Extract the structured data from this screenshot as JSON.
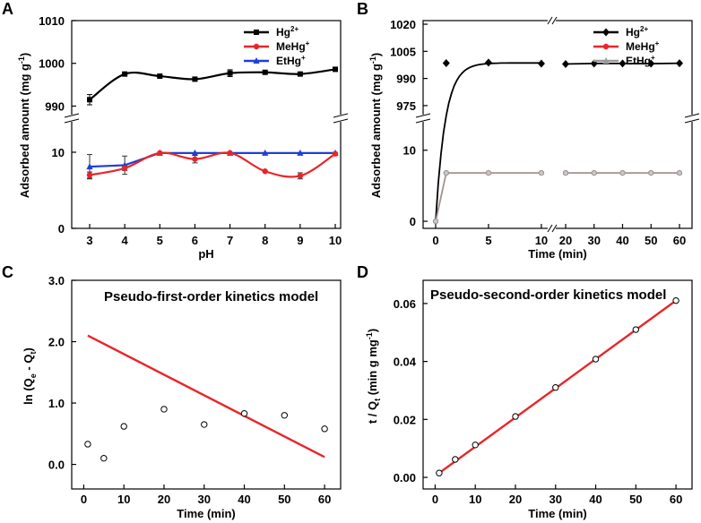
{
  "figure": {
    "panel_labels": [
      "A",
      "B",
      "C",
      "D"
    ]
  },
  "chart_data": [
    {
      "panel": "A",
      "type": "line",
      "xlabel": "pH",
      "ylabel": "Adsorbed amount (mg g-1)",
      "x": [
        3,
        4,
        5,
        6,
        7,
        8,
        9,
        10
      ],
      "xticks": [
        "3",
        "4",
        "5",
        "6",
        "7",
        "8",
        "9",
        "10"
      ],
      "upper_yticks": [
        "990",
        "1000",
        "1010"
      ],
      "lower_yticks": [
        "0",
        "10"
      ],
      "ylim_upper": [
        988,
        1010
      ],
      "ylim_lower": [
        0,
        14
      ],
      "series": [
        {
          "name": "Hg",
          "sup": "2+",
          "color": "#000000",
          "marker": "square",
          "segment": "upper",
          "values": [
            991.5,
            997.5,
            997,
            996.3,
            997.7,
            997.9,
            997.5,
            998.6
          ],
          "errors": [
            1.2,
            0.3,
            0.2,
            0.2,
            0.8,
            0.2,
            0.2,
            0.2
          ]
        },
        {
          "name": "MeHg",
          "sup": "+",
          "color": "#e8262a",
          "marker": "circle",
          "segment": "lower",
          "values": [
            7.0,
            7.9,
            9.9,
            9.1,
            9.9,
            7.5,
            6.9,
            9.8
          ],
          "errors": [
            0.4,
            0.3,
            0,
            0.5,
            0,
            0,
            0.4,
            0
          ]
        },
        {
          "name": "EtHg",
          "sup": "+",
          "color": "#1f3fd6",
          "marker": "triangle",
          "segment": "lower",
          "values": [
            8.1,
            8.3,
            9.9,
            9.9,
            9.9,
            9.9,
            9.9,
            9.9
          ],
          "errors": [
            1.6,
            1.2,
            0,
            0,
            0,
            0,
            0,
            0
          ]
        }
      ]
    },
    {
      "panel": "B",
      "type": "line",
      "xlabel": "Time (min)",
      "ylabel": "Adsorbed amount (mg g-1)",
      "xticks_left": [
        "0",
        "5",
        "10"
      ],
      "xticks_right": [
        "20",
        "30",
        "40",
        "50",
        "60"
      ],
      "upper_yticks": [
        "975",
        "990",
        "1005",
        "1020"
      ],
      "lower_yticks": [
        "0",
        "10"
      ],
      "ylim_upper": [
        970,
        1022
      ],
      "ylim_lower": [
        -1,
        14
      ],
      "series": [
        {
          "name": "Hg",
          "sup": "2+",
          "color": "#000000",
          "marker": "diamond",
          "x": [
            0,
            1,
            5,
            10,
            20,
            30,
            40,
            50,
            60
          ],
          "values": [
            0,
            998.5,
            998.8,
            998.2,
            998,
            998.3,
            998.3,
            998.2,
            998.4
          ]
        },
        {
          "name": "MeHg",
          "sup": "+",
          "color": "#e8262a",
          "marker": "circle",
          "x": [
            0,
            1,
            5,
            10,
            20,
            30,
            40,
            50,
            60
          ],
          "values": [
            0,
            6.8,
            6.8,
            6.8,
            6.8,
            6.8,
            6.8,
            6.8,
            6.8
          ]
        },
        {
          "name": "EtHg",
          "sup": "+",
          "color": "#999999",
          "marker": "triangle",
          "x": [
            0,
            1,
            5,
            10,
            20,
            30,
            40,
            50,
            60
          ],
          "values": [
            0,
            6.8,
            6.8,
            6.8,
            6.8,
            6.8,
            6.8,
            6.8,
            6.8
          ]
        }
      ]
    },
    {
      "panel": "C",
      "type": "scatter",
      "title": "Pseudo-first-order kinetics model",
      "xlabel": "Time (min)",
      "ylabel": "ln (Qe - Qt)",
      "xlim": [
        -3,
        64
      ],
      "ylim": [
        -0.4,
        3.0
      ],
      "xticks": [
        0,
        10,
        20,
        30,
        40,
        50,
        60
      ],
      "yticks": [
        "0.0",
        "1.0",
        "2.0",
        "3.0"
      ],
      "points": {
        "x": [
          1,
          5,
          10,
          20,
          30,
          40,
          50,
          60
        ],
        "y": [
          0.33,
          0.1,
          0.62,
          0.9,
          0.65,
          0.83,
          0.8,
          0.58
        ]
      },
      "fit_line": {
        "x": [
          1,
          60
        ],
        "y": [
          2.1,
          0.12
        ],
        "color": "#e8262a"
      }
    },
    {
      "panel": "D",
      "type": "scatter",
      "title": "Pseudo-second-order kinetics model",
      "xlabel": "Time (min)",
      "ylabel": "t / Qt (min g mg-1)",
      "xlim": [
        -3,
        64
      ],
      "ylim": [
        -0.004,
        0.068
      ],
      "xticks": [
        0,
        10,
        20,
        30,
        40,
        50,
        60
      ],
      "yticks": [
        "0.00",
        "0.02",
        "0.04",
        "0.06"
      ],
      "points": {
        "x": [
          1,
          5,
          10,
          20,
          30,
          40,
          50,
          60
        ],
        "y": [
          0.0015,
          0.0062,
          0.0112,
          0.021,
          0.031,
          0.0408,
          0.051,
          0.061
        ]
      },
      "fit_line": {
        "x": [
          1,
          60
        ],
        "y": [
          0.0015,
          0.061
        ],
        "color": "#e8262a"
      }
    }
  ]
}
